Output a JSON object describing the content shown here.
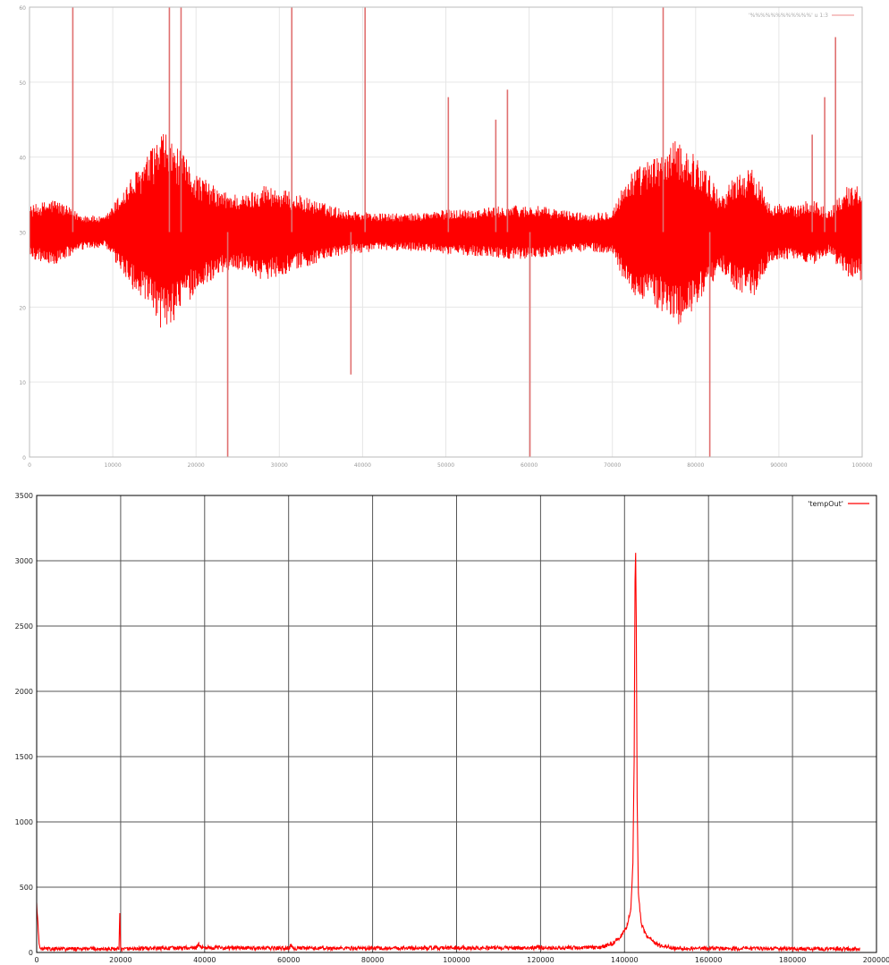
{
  "charts": [
    {
      "type": "line",
      "legend": "'%%%%%%%%%%%%' u 1:3",
      "legend_placement": "top-right",
      "line_color": "#ff0000",
      "frame_color": "#bbbbbb",
      "grid": true,
      "xlim": [
        0,
        100000
      ],
      "ylim": [
        0,
        60
      ],
      "x_ticks": [
        "0",
        "10000",
        "20000",
        "30000",
        "40000",
        "50000",
        "60000",
        "70000",
        "80000",
        "90000",
        "100000"
      ],
      "y_ticks": [
        "0",
        "10",
        "20",
        "30",
        "40",
        "50",
        "60"
      ]
    },
    {
      "type": "line",
      "legend": "'tempOut'",
      "legend_placement": "top-right",
      "line_color": "#ff0000",
      "frame_color": "#000000",
      "grid": true,
      "xlim": [
        0,
        200000
      ],
      "ylim": [
        0,
        3500
      ],
      "x_ticks": [
        "0",
        "20000",
        "40000",
        "60000",
        "80000",
        "100000",
        "120000",
        "140000",
        "160000",
        "180000",
        "200000"
      ],
      "y_ticks": [
        "0",
        "500",
        "1000",
        "1500",
        "2000",
        "2500",
        "3000",
        "3500"
      ]
    }
  ],
  "chart_data": [
    {
      "type": "line",
      "title": "",
      "xlabel": "",
      "ylabel": "",
      "xlim": [
        0,
        100000
      ],
      "ylim": [
        0,
        60
      ],
      "grid": true,
      "legend_placement": "top-right",
      "series": [
        {
          "name": "'%%%%%%%%%%%%' u 1:3",
          "color": "#ff0000",
          "center": 30,
          "envelope": [
            {
              "x": 0,
              "amp": 3.5
            },
            {
              "x": 3000,
              "amp": 4.5
            },
            {
              "x": 6000,
              "amp": 2.5
            },
            {
              "x": 9000,
              "amp": 2.0
            },
            {
              "x": 12000,
              "amp": 7.0
            },
            {
              "x": 14000,
              "amp": 10.0
            },
            {
              "x": 16000,
              "amp": 13.5
            },
            {
              "x": 18000,
              "amp": 11.0
            },
            {
              "x": 20000,
              "amp": 8.0
            },
            {
              "x": 23000,
              "amp": 5.5
            },
            {
              "x": 26000,
              "amp": 5.0
            },
            {
              "x": 28000,
              "amp": 6.5
            },
            {
              "x": 31000,
              "amp": 5.5
            },
            {
              "x": 35000,
              "amp": 4.0
            },
            {
              "x": 38000,
              "amp": 3.0
            },
            {
              "x": 42000,
              "amp": 2.5
            },
            {
              "x": 46000,
              "amp": 2.5
            },
            {
              "x": 50000,
              "amp": 3.0
            },
            {
              "x": 54000,
              "amp": 3.2
            },
            {
              "x": 58000,
              "amp": 3.6
            },
            {
              "x": 61000,
              "amp": 3.5
            },
            {
              "x": 64000,
              "amp": 3.0
            },
            {
              "x": 67000,
              "amp": 2.5
            },
            {
              "x": 70000,
              "amp": 3.0
            },
            {
              "x": 72000,
              "amp": 8.0
            },
            {
              "x": 75000,
              "amp": 10.0
            },
            {
              "x": 78000,
              "amp": 12.5
            },
            {
              "x": 81000,
              "amp": 9.0
            },
            {
              "x": 83000,
              "amp": 5.0
            },
            {
              "x": 85000,
              "amp": 8.0
            },
            {
              "x": 87000,
              "amp": 8.5
            },
            {
              "x": 89000,
              "amp": 4.0
            },
            {
              "x": 92000,
              "amp": 3.5
            },
            {
              "x": 94000,
              "amp": 4.5
            },
            {
              "x": 96000,
              "amp": 3.0
            },
            {
              "x": 98000,
              "amp": 6.0
            },
            {
              "x": 100000,
              "amp": 6.5
            }
          ],
          "spikes": [
            {
              "x": 5200,
              "y": 60
            },
            {
              "x": 16800,
              "y": 60
            },
            {
              "x": 18200,
              "y": 60
            },
            {
              "x": 23800,
              "y": 0
            },
            {
              "x": 31500,
              "y": 60
            },
            {
              "x": 38600,
              "y": 11
            },
            {
              "x": 40300,
              "y": 60
            },
            {
              "x": 50300,
              "y": 48
            },
            {
              "x": 56000,
              "y": 45
            },
            {
              "x": 57400,
              "y": 49
            },
            {
              "x": 60100,
              "y": 0
            },
            {
              "x": 76100,
              "y": 60
            },
            {
              "x": 81700,
              "y": 0
            },
            {
              "x": 94000,
              "y": 43
            },
            {
              "x": 95500,
              "y": 48
            },
            {
              "x": 96800,
              "y": 56
            }
          ]
        }
      ]
    },
    {
      "type": "line",
      "title": "",
      "xlabel": "",
      "ylabel": "",
      "xlim": [
        0,
        200000
      ],
      "ylim": [
        0,
        3500
      ],
      "grid": true,
      "legend_placement": "top-right",
      "series": [
        {
          "name": "'tempOut'",
          "color": "#ff0000",
          "x_end": 196000,
          "noise_floor": 25,
          "points": [
            {
              "x": 0,
              "y": 380
            },
            {
              "x": 600,
              "y": 60
            },
            {
              "x": 1200,
              "y": 30
            },
            {
              "x": 19600,
              "y": 30
            },
            {
              "x": 19800,
              "y": 300
            },
            {
              "x": 20000,
              "y": 30
            },
            {
              "x": 38000,
              "y": 40
            },
            {
              "x": 38600,
              "y": 65
            },
            {
              "x": 39400,
              "y": 40
            },
            {
              "x": 60000,
              "y": 35
            },
            {
              "x": 60600,
              "y": 55
            },
            {
              "x": 61200,
              "y": 35
            },
            {
              "x": 134000,
              "y": 40
            },
            {
              "x": 137000,
              "y": 70
            },
            {
              "x": 139000,
              "y": 120
            },
            {
              "x": 140500,
              "y": 200
            },
            {
              "x": 141500,
              "y": 330
            },
            {
              "x": 142000,
              "y": 700
            },
            {
              "x": 142300,
              "y": 1500
            },
            {
              "x": 142500,
              "y": 2850
            },
            {
              "x": 142650,
              "y": 3060
            },
            {
              "x": 142800,
              "y": 2500
            },
            {
              "x": 143000,
              "y": 1200
            },
            {
              "x": 143300,
              "y": 450
            },
            {
              "x": 144000,
              "y": 220
            },
            {
              "x": 145500,
              "y": 120
            },
            {
              "x": 148000,
              "y": 60
            },
            {
              "x": 152000,
              "y": 35
            },
            {
              "x": 196000,
              "y": 30
            }
          ]
        }
      ]
    }
  ]
}
